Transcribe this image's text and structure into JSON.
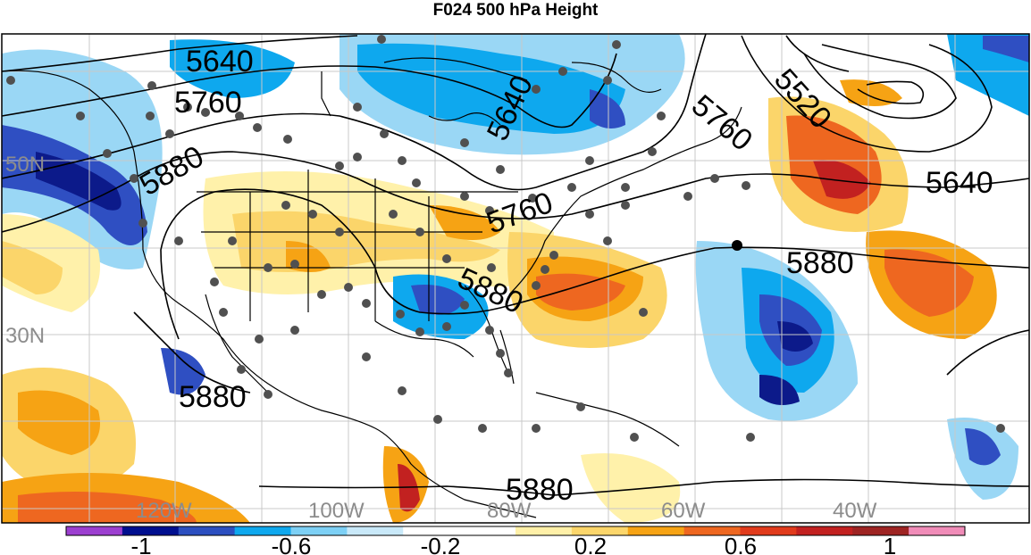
{
  "title": "F024 500 hPa Height",
  "contour_labels": [
    "5640",
    "5760",
    "5880",
    "5640",
    "5760",
    "5520",
    "5640",
    "5760",
    "5880",
    "5880",
    "5880",
    "5880"
  ],
  "lat_labels": [
    "50N",
    "30N"
  ],
  "lon_labels": [
    "120W",
    "100W",
    "80W",
    "60W",
    "40W"
  ],
  "colorbar": {
    "labels": [
      "-1",
      "-0.6",
      "-0.2",
      "0.2",
      "0.6",
      "1"
    ],
    "colors": [
      "#9c3fd0",
      "#000f8f",
      "#2c4fc0",
      "#0ea8ee",
      "#7dd0f5",
      "#c9e9f9",
      "#ffffff",
      "#ffffff",
      "#fff0a8",
      "#fcd66b",
      "#f6a314",
      "#ee6720",
      "#e13b1c",
      "#c22120",
      "#9e2423",
      "#f08cb8"
    ]
  },
  "palette": {
    "deep_blue": "#0c1a8a",
    "blue": "#2f4fc2",
    "sky": "#0ea8ee",
    "light_blue": "#9ad7f5",
    "pale_blue": "#d4eefb",
    "pale_yellow": "#fff1aa",
    "yellow": "#fbd56a",
    "orange": "#f6a314",
    "red_orange": "#ee6720",
    "red": "#c22120",
    "point_gray": "#505050"
  }
}
